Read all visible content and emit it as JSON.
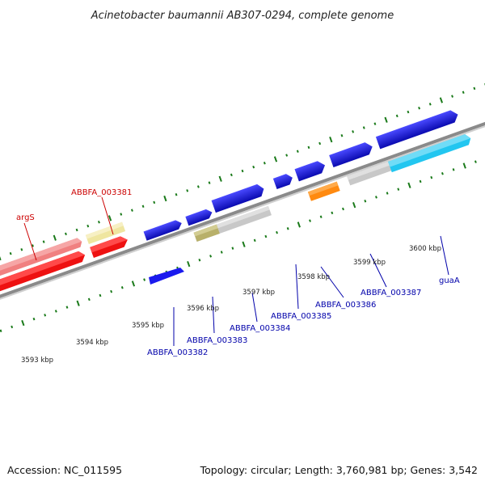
{
  "title": "Acinetobacter baumannii AB307-0294, complete genome",
  "footer": {
    "accession": "Accession: NC_011595",
    "summary": "Topology: circular; Length: 3,760,981 bp; Genes: 3,542"
  },
  "scale_labels": [
    "3593 kbp",
    "3594 kbp",
    "3595 kbp",
    "3596 kbp",
    "3597 kbp",
    "3598 kbp",
    "3599 kbp",
    "3600 kbp"
  ],
  "gene_labels": {
    "argS": "argS",
    "ABBFA_003381": "ABBFA_003381",
    "ABBFA_003382": "ABBFA_003382",
    "ABBFA_003383": "ABBFA_003383",
    "ABBFA_003384": "ABBFA_003384",
    "ABBFA_003385": "ABBFA_003385",
    "ABBFA_003386": "ABBFA_003386",
    "ABBFA_003387": "ABBFA_003387",
    "guaA": "guaA"
  },
  "colors": {
    "red": "#ee1111",
    "pink": "#f08080",
    "pale_yellow": "#efe6a0",
    "blue": "#1a1aee",
    "gray": "#c8c8c8",
    "olive": "#b8b06a",
    "orange": "#ff8a10",
    "cyan": "#22c6f0",
    "backbone": "#8a8a8a",
    "tick": "#1a7a1a"
  }
}
